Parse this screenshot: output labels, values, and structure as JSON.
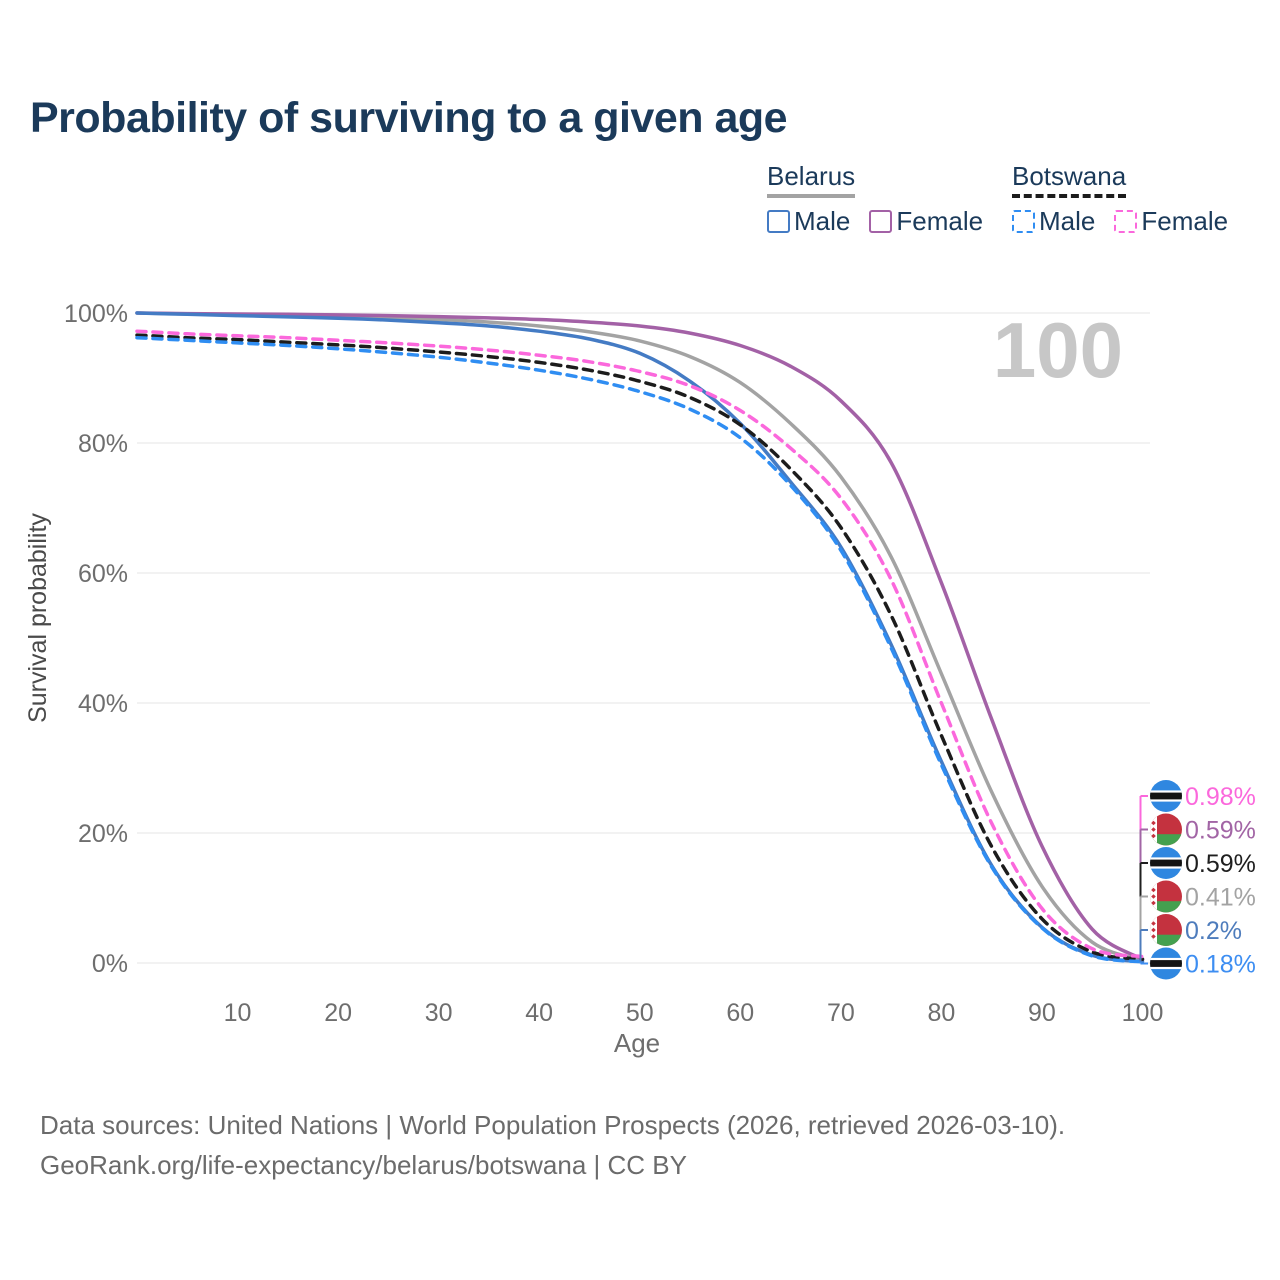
{
  "title": "Probability of surviving to a given age",
  "watermark_age": "100",
  "legend": {
    "groups": [
      {
        "name": "Belarus",
        "line_style": "solid",
        "underline_color": "#a3a3a3",
        "items": [
          {
            "label": "Male",
            "color": "#447bc4"
          },
          {
            "label": "Female",
            "color": "#a361a6"
          }
        ]
      },
      {
        "name": "Botswana",
        "line_style": "dashed",
        "underline_color": "#1c1c1c",
        "items": [
          {
            "label": "Male",
            "color": "#2f8df2"
          },
          {
            "label": "Female",
            "color": "#fb68dc"
          }
        ]
      }
    ]
  },
  "chart_data": {
    "type": "line",
    "title": "Probability of surviving to a given age",
    "xlabel": "Age",
    "ylabel": "Survival probability",
    "xlim": [
      0,
      100
    ],
    "ylim": [
      0,
      100
    ],
    "grid": true,
    "x": [
      0,
      5,
      10,
      15,
      20,
      25,
      30,
      35,
      40,
      45,
      50,
      55,
      60,
      65,
      70,
      75,
      80,
      85,
      90,
      95,
      100
    ],
    "x_ticks": [
      10,
      20,
      30,
      40,
      50,
      60,
      70,
      80,
      90,
      100
    ],
    "y_ticks": [
      {
        "value": 0,
        "label": "0%"
      },
      {
        "value": 20,
        "label": "20%"
      },
      {
        "value": 40,
        "label": "40%"
      },
      {
        "value": 60,
        "label": "60%"
      },
      {
        "value": 80,
        "label": "80%"
      },
      {
        "value": 100,
        "label": "100%"
      }
    ],
    "series": [
      {
        "id": "belarus_total",
        "name": "Belarus (total)",
        "country": "Belarus",
        "sex": "All",
        "line_style": "solid",
        "color": "#a3a3a3",
        "values": [
          100,
          99.85,
          99.7,
          99.6,
          99.45,
          99.25,
          99.0,
          98.6,
          98.0,
          97.1,
          95.7,
          93.3,
          89.3,
          83.0,
          74.8,
          62.5,
          44.5,
          26.3,
          11.8,
          3.2,
          0.41
        ]
      },
      {
        "id": "belarus_female",
        "name": "Belarus Female",
        "country": "Belarus",
        "sex": "Female",
        "line_style": "solid",
        "color": "#a361a6",
        "values": [
          100,
          99.9,
          99.85,
          99.8,
          99.7,
          99.6,
          99.45,
          99.25,
          99.0,
          98.6,
          98.0,
          96.9,
          95.0,
          91.8,
          86.5,
          77.0,
          58.5,
          37.5,
          18.0,
          5.2,
          0.59
        ]
      },
      {
        "id": "belarus_male",
        "name": "Belarus Male",
        "country": "Belarus",
        "sex": "Male",
        "line_style": "solid",
        "color": "#447bc4",
        "values": [
          100,
          99.8,
          99.6,
          99.4,
          99.2,
          98.9,
          98.5,
          98.0,
          97.2,
          96.0,
          93.8,
          89.5,
          83.0,
          74.0,
          64.0,
          49.0,
          31.0,
          15.0,
          5.5,
          1.2,
          0.2
        ]
      },
      {
        "id": "botswana_total",
        "name": "Botswana (total)",
        "country": "Botswana",
        "sex": "All",
        "line_style": "dashed",
        "color": "#1c1c1c",
        "values": [
          96.6,
          96.2,
          95.9,
          95.5,
          95.1,
          94.6,
          94.0,
          93.3,
          92.4,
          91.2,
          89.5,
          87.0,
          82.8,
          76.0,
          67.0,
          53.5,
          35.0,
          17.9,
          6.8,
          1.7,
          0.59
        ]
      },
      {
        "id": "botswana_female",
        "name": "Botswana Female",
        "country": "Botswana",
        "sex": "Female",
        "line_style": "dashed",
        "color": "#fb68dc",
        "values": [
          97.2,
          96.8,
          96.5,
          96.2,
          95.8,
          95.4,
          94.9,
          94.3,
          93.5,
          92.5,
          91.0,
          88.8,
          85.0,
          79.2,
          71.5,
          59.0,
          40.0,
          21.5,
          8.4,
          2.2,
          0.98
        ]
      },
      {
        "id": "botswana_male",
        "name": "Botswana Male",
        "country": "Botswana",
        "sex": "Male",
        "line_style": "dashed",
        "color": "#2f8df2",
        "values": [
          96.2,
          95.8,
          95.4,
          95.0,
          94.5,
          93.9,
          93.2,
          92.3,
          91.2,
          89.8,
          87.9,
          85.2,
          80.8,
          73.5,
          63.5,
          48.5,
          30.5,
          14.8,
          5.4,
          1.1,
          0.18
        ]
      }
    ]
  },
  "end_labels": [
    {
      "text": "0.98%",
      "value": 0.98,
      "color": "#fb68dc",
      "flag": "botswana",
      "series": "botswana_female"
    },
    {
      "text": "0.59%",
      "value": 0.59,
      "color": "#a265a5",
      "flag": "belarus",
      "series": "belarus_female"
    },
    {
      "text": "0.59%",
      "value": 0.59,
      "color": "#1f1f1f",
      "flag": "botswana",
      "series": "botswana_total"
    },
    {
      "text": "0.41%",
      "value": 0.41,
      "color": "#a3a3a3",
      "flag": "belarus",
      "series": "belarus_total"
    },
    {
      "text": "0.2%",
      "value": 0.2,
      "color": "#4e7cbc",
      "flag": "belarus",
      "series": "belarus_male"
    },
    {
      "text": "0.18%",
      "value": 0.18,
      "color": "#3d8ef2",
      "flag": "botswana",
      "series": "botswana_male"
    }
  ],
  "flag_colors": {
    "botswana": {
      "blue": "#2f87e0",
      "black": "#141414",
      "white": "#ffffff"
    },
    "belarus": {
      "red": "#c4323f",
      "green": "#44a04f",
      "white": "#ffffff"
    }
  },
  "footer": {
    "line1": "Data sources: United Nations | World Population Prospects (2026, retrieved 2026-03-10).",
    "line2": "GeoRank.org/life-expectancy/belarus/botswana | CC BY"
  }
}
